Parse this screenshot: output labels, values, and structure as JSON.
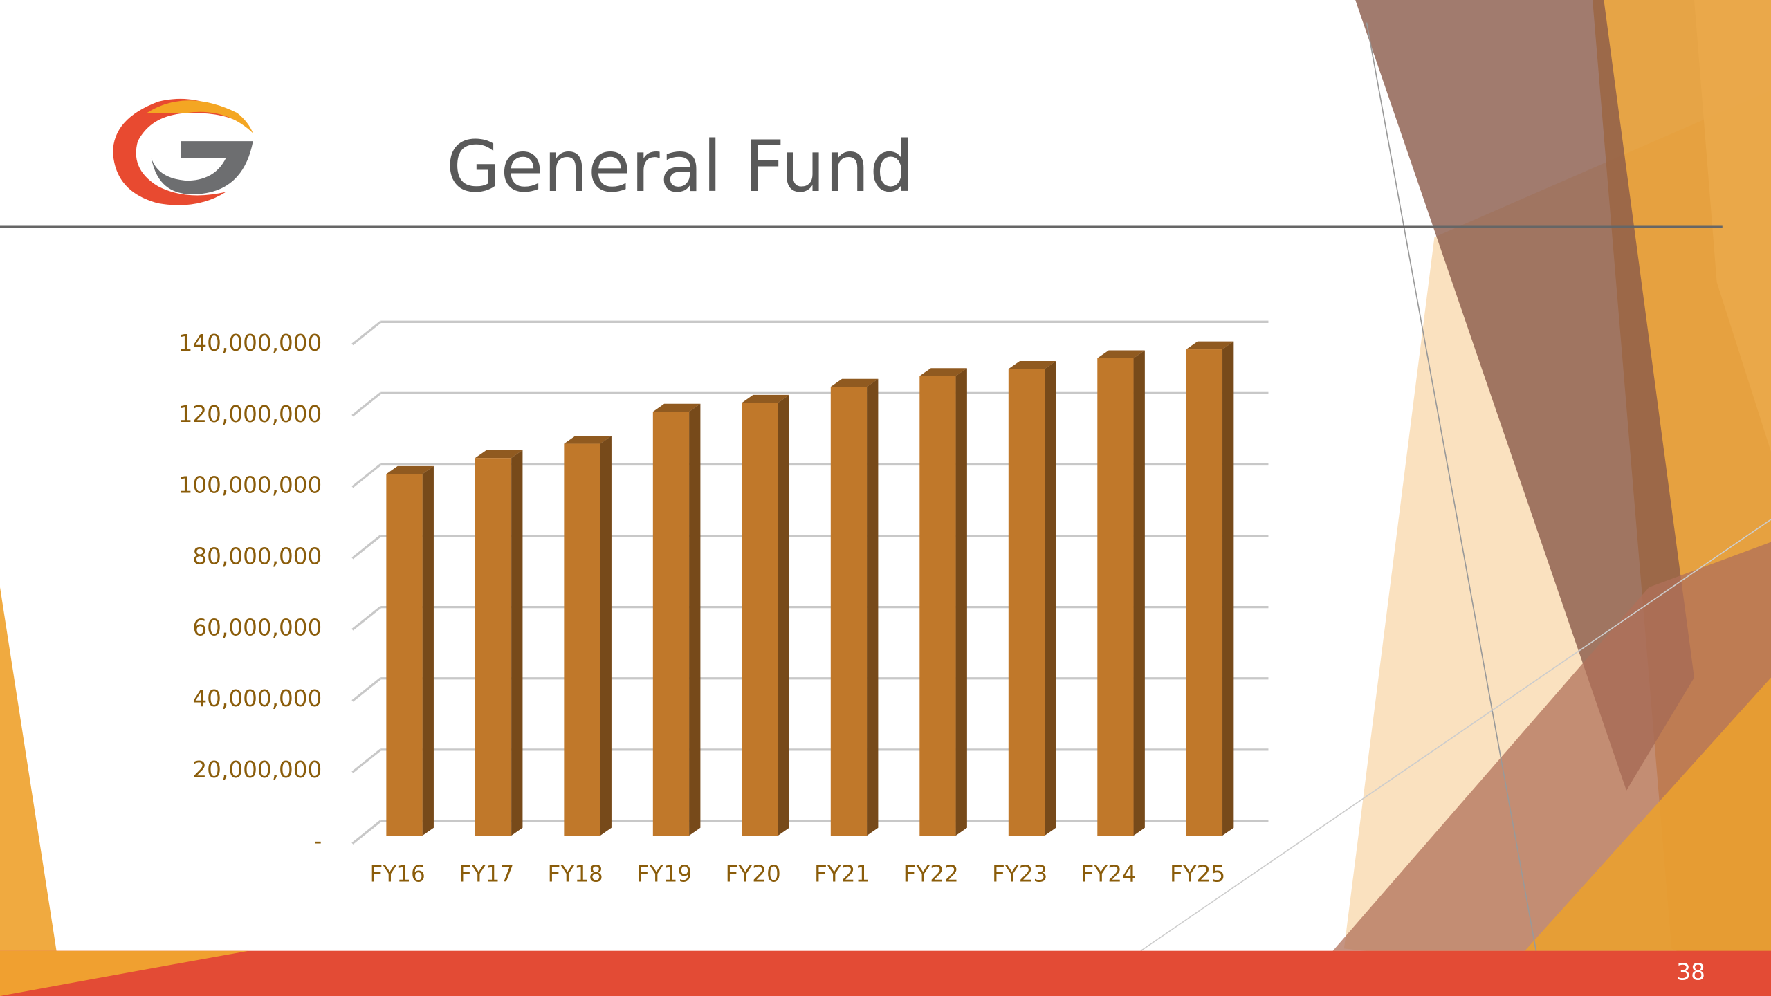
{
  "chart_data": {
    "type": "bar3d",
    "title": "General Fund",
    "categories": [
      "FY16",
      "FY17",
      "FY18",
      "FY19",
      "FY20",
      "FY21",
      "FY22",
      "FY23",
      "FY24",
      "FY25"
    ],
    "values": [
      101500000,
      106000000,
      110000000,
      119000000,
      121500000,
      126000000,
      129000000,
      131000000,
      134000000,
      136500000
    ],
    "color": "#c0782a",
    "ylim": [
      0,
      140000000
    ],
    "yticks": [
      {
        "value": 0,
        "label": "-"
      },
      {
        "value": 20000000,
        "label": "20,000,000"
      },
      {
        "value": 40000000,
        "label": "40,000,000"
      },
      {
        "value": 60000000,
        "label": "60,000,000"
      },
      {
        "value": 80000000,
        "label": "80,000,000"
      },
      {
        "value": 100000000,
        "label": "100,000,000"
      },
      {
        "value": 120000000,
        "label": "120,000,000"
      },
      {
        "value": 140000000,
        "label": "140,000,000"
      }
    ],
    "grid": true
  },
  "slide_number": "38"
}
